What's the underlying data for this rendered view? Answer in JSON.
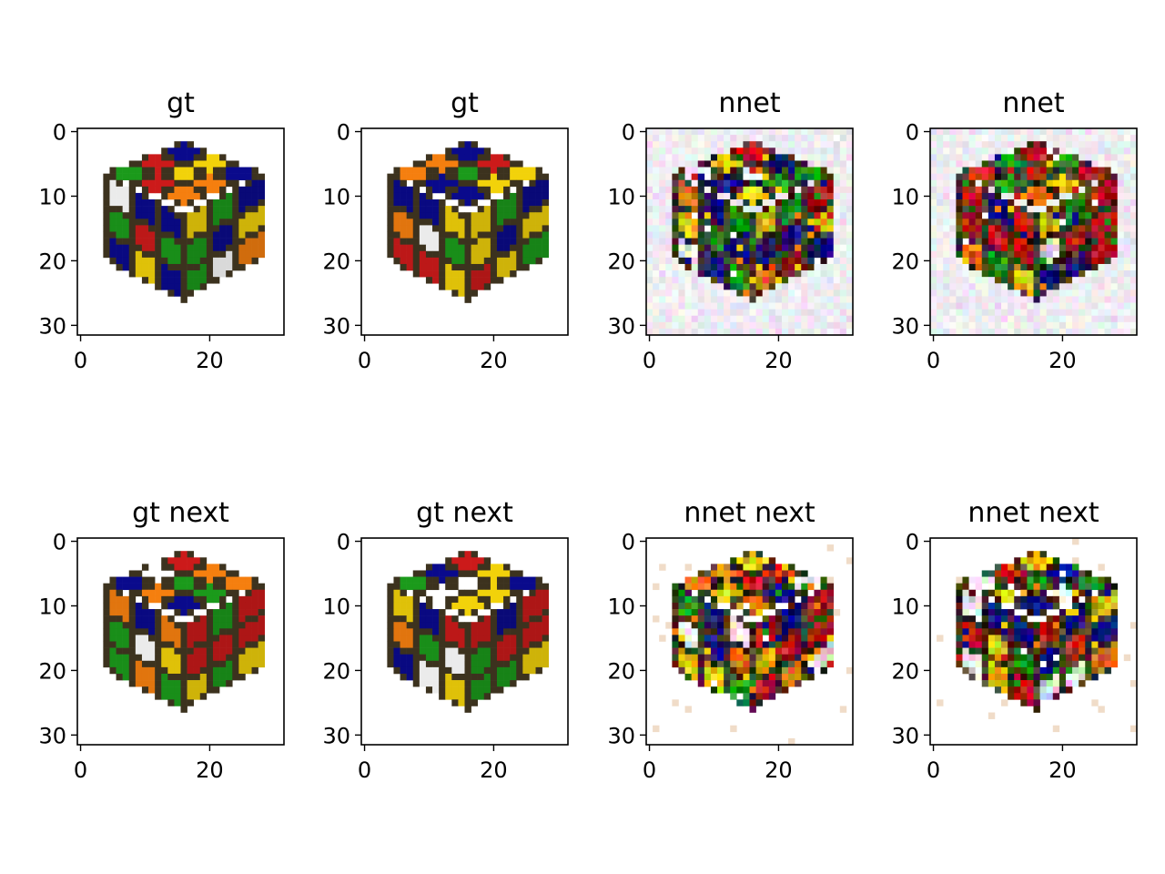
{
  "figure": {
    "panels": [
      {
        "title": "gt",
        "kind": "ground-truth",
        "variant": 0
      },
      {
        "title": "gt",
        "kind": "ground-truth",
        "variant": 1
      },
      {
        "title": "nnet",
        "kind": "prediction",
        "variant": 2
      },
      {
        "title": "nnet",
        "kind": "prediction",
        "variant": 3
      },
      {
        "title": "gt next",
        "kind": "ground-truth",
        "variant": 4
      },
      {
        "title": "gt next",
        "kind": "ground-truth",
        "variant": 5
      },
      {
        "title": "nnet next",
        "kind": "prediction",
        "variant": 6
      },
      {
        "title": "nnet next",
        "kind": "prediction",
        "variant": 7
      }
    ],
    "x_ticks": [
      "0",
      "20"
    ],
    "y_ticks": [
      "0",
      "10",
      "20",
      "30"
    ],
    "image_size": [
      32,
      32
    ],
    "cube_colors": [
      "#ffffff",
      "#f57f0f",
      "#1b9a1b",
      "#0a0a8c",
      "#cc1a1a",
      "#f2d20a"
    ]
  }
}
